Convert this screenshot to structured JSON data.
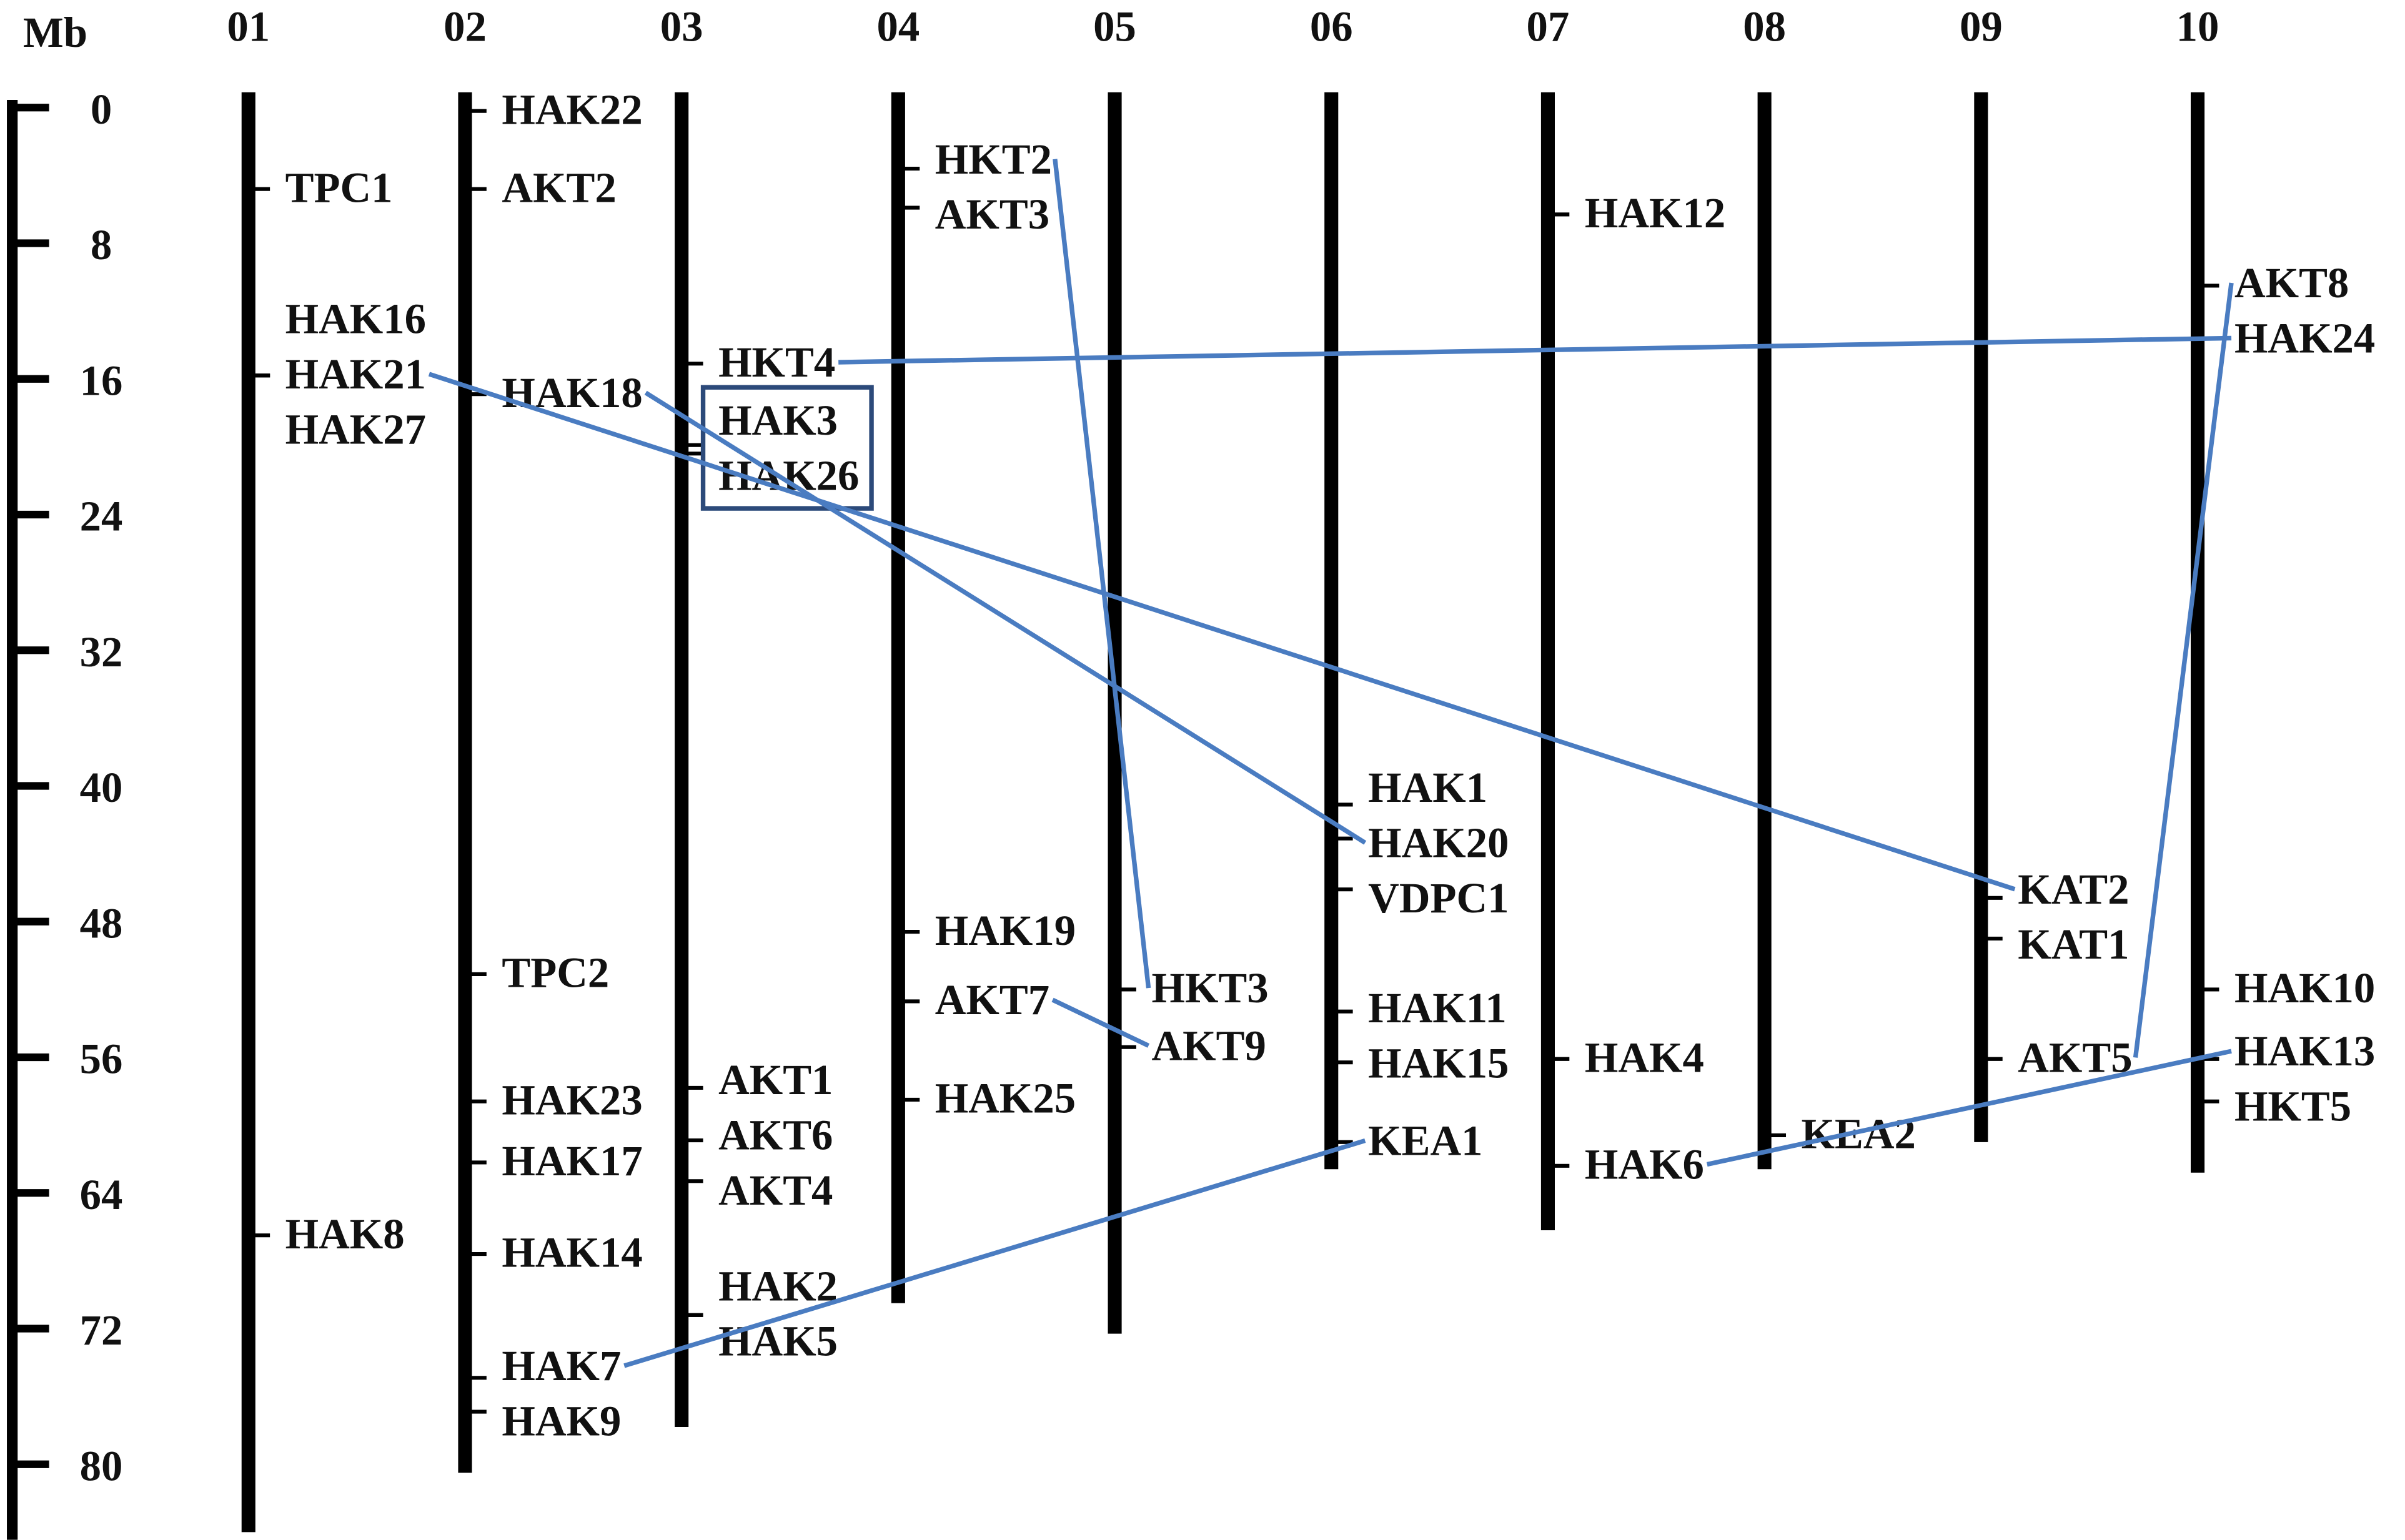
{
  "scale": {
    "unit": "Mb",
    "range": [
      0,
      84
    ],
    "ticks": [
      0,
      8,
      16,
      24,
      32,
      40,
      48,
      56,
      64,
      72,
      80
    ]
  },
  "chromosomes": [
    {
      "name": "01",
      "length_mb": 84,
      "genes": [
        {
          "name": "TPC1",
          "position_mb": 4.8
        },
        {
          "name": "HAK16",
          "position_mb": 15.8
        },
        {
          "name": "HAK21",
          "position_mb": 15.8
        },
        {
          "name": "HAK27",
          "position_mb": 15.8
        },
        {
          "name": "HAK8",
          "position_mb": 66.5
        }
      ]
    },
    {
      "name": "02",
      "length_mb": 80.5,
      "genes": [
        {
          "name": "HAK22",
          "position_mb": 0.2
        },
        {
          "name": "AKT2",
          "position_mb": 4.8
        },
        {
          "name": "HAK18",
          "position_mb": 16.9
        },
        {
          "name": "TPC2",
          "position_mb": 51.1
        },
        {
          "name": "HAK23",
          "position_mb": 58.6
        },
        {
          "name": "HAK17",
          "position_mb": 62.2
        },
        {
          "name": "HAK14",
          "position_mb": 67.6
        },
        {
          "name": "HAK7",
          "position_mb": 74.9
        },
        {
          "name": "HAK9",
          "position_mb": 76.9
        }
      ]
    },
    {
      "name": "03",
      "length_mb": 77.8,
      "genes": [
        {
          "name": "HKT4",
          "position_mb": 15.1
        },
        {
          "name": "HAK3",
          "position_mb": 19.9
        },
        {
          "name": "HAK26",
          "position_mb": 20.4
        },
        {
          "name": "AKT1",
          "position_mb": 57.8
        },
        {
          "name": "AKT6",
          "position_mb": 60.9
        },
        {
          "name": "AKT4",
          "position_mb": 63.3
        },
        {
          "name": "HAK2",
          "position_mb": 71.2
        },
        {
          "name": "HAK5",
          "position_mb": 71.2
        }
      ]
    },
    {
      "name": "04",
      "length_mb": 70.5,
      "genes": [
        {
          "name": "HKT2",
          "position_mb": 3.6
        },
        {
          "name": "AKT3",
          "position_mb": 5.9
        },
        {
          "name": "HAK19",
          "position_mb": 48.6
        },
        {
          "name": "AKT7",
          "position_mb": 52.7
        },
        {
          "name": "HAK25",
          "position_mb": 58.5
        }
      ]
    },
    {
      "name": "05",
      "length_mb": 72.3,
      "genes": [
        {
          "name": "HKT3",
          "position_mb": 52
        },
        {
          "name": "AKT9",
          "position_mb": 55.4
        }
      ]
    },
    {
      "name": "06",
      "length_mb": 62.6,
      "genes": [
        {
          "name": "HAK1",
          "position_mb": 41.1
        },
        {
          "name": "HAK20",
          "position_mb": 43.1
        },
        {
          "name": "VDPC1",
          "position_mb": 46.1
        },
        {
          "name": "HAK11",
          "position_mb": 53.3
        },
        {
          "name": "HAK15",
          "position_mb": 56.3
        },
        {
          "name": "KEA1",
          "position_mb": 61
        }
      ]
    },
    {
      "name": "07",
      "length_mb": 66.2,
      "genes": [
        {
          "name": "HAK12",
          "position_mb": 6.3
        },
        {
          "name": "HAK4",
          "position_mb": 56.1
        },
        {
          "name": "HAK6",
          "position_mb": 62.4
        }
      ]
    },
    {
      "name": "08",
      "length_mb": 62.6,
      "genes": [
        {
          "name": "KEA2",
          "position_mb": 60.6
        }
      ]
    },
    {
      "name": "09",
      "length_mb": 61,
      "genes": [
        {
          "name": "KAT2",
          "position_mb": 46.6
        },
        {
          "name": "KAT1",
          "position_mb": 49
        },
        {
          "name": "AKT5",
          "position_mb": 56.1
        }
      ]
    },
    {
      "name": "10",
      "length_mb": 62.8,
      "genes": [
        {
          "name": "AKT8",
          "position_mb": 10.5
        },
        {
          "name": "HAK24",
          "position_mb": 13.6
        },
        {
          "name": "HAK10",
          "position_mb": 52
        },
        {
          "name": "HAK13",
          "position_mb": 56.1
        },
        {
          "name": "HKT5",
          "position_mb": 58.6
        }
      ]
    }
  ]
}
